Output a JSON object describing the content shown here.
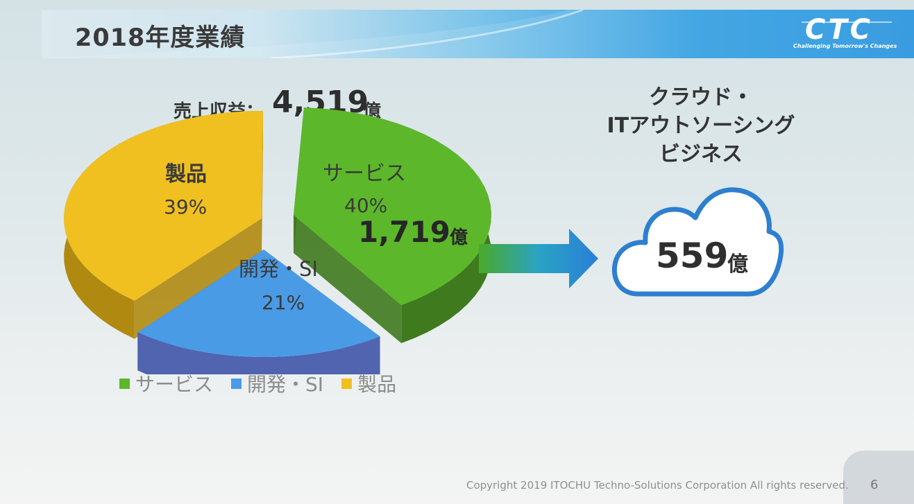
{
  "slide": {
    "title": "2018年度業績",
    "logo_text": "CTC",
    "logo_tagline": "Challenging Tomorrow's Changes",
    "copyright": "Copyright 2019 ITOCHU Techno-Solutions Corporation All rights reserved.",
    "page_number": "6"
  },
  "revenue": {
    "label": "売上収益：",
    "value": "4,519",
    "unit": "億"
  },
  "cloud": {
    "title_lines": [
      "クラウド・",
      "ITアウトソーシング",
      "ビジネス"
    ],
    "value": "559",
    "unit": "億"
  },
  "colors": {
    "service": "#5cb82a",
    "dev_si": "#4a9be6",
    "product": "#f0c020"
  },
  "chart_data": {
    "type": "pie",
    "title": "",
    "slices": [
      {
        "name": "サービス",
        "label": "サービス",
        "percent": 40,
        "percent_label": "40%",
        "amount_label": "1,719",
        "amount_unit": "億"
      },
      {
        "name": "開発・SI",
        "label": "開発・SI",
        "percent": 21,
        "percent_label": "21%"
      },
      {
        "name": "製品",
        "label": "製品",
        "percent": 39,
        "percent_label": "39%"
      }
    ],
    "legend": [
      "サービス",
      "開発・SI",
      "製品"
    ],
    "legend_position": "bottom"
  }
}
